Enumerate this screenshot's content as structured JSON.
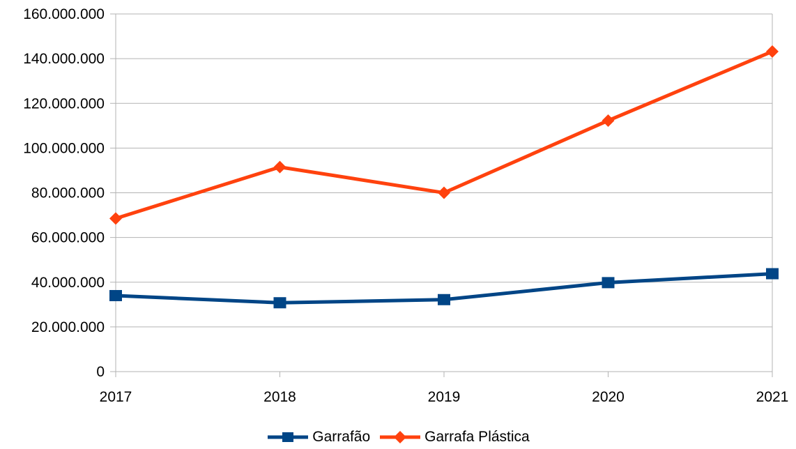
{
  "chart_data": {
    "type": "line",
    "categories": [
      "2017",
      "2018",
      "2019",
      "2020",
      "2021"
    ],
    "ylim": [
      0,
      160000000
    ],
    "y_ticks": [
      0,
      20000000,
      40000000,
      60000000,
      80000000,
      100000000,
      120000000,
      140000000,
      160000000
    ],
    "y_tick_labels": [
      "0",
      "20.000.000",
      "40.000.000",
      "60.000.000",
      "80.000.000",
      "100.000.000",
      "120.000.000",
      "140.000.000",
      "160.000.000"
    ],
    "grid": true,
    "legend_position": "bottom",
    "series": [
      {
        "name": "Garrafão",
        "color": "#004586",
        "marker": "square",
        "values": [
          34000000,
          30800000,
          32200000,
          39800000,
          43800000
        ]
      },
      {
        "name": "Garrafa Plástica",
        "color": "#ff420e",
        "marker": "diamond",
        "values": [
          68500000,
          91500000,
          80000000,
          112300000,
          143200000
        ]
      }
    ]
  }
}
